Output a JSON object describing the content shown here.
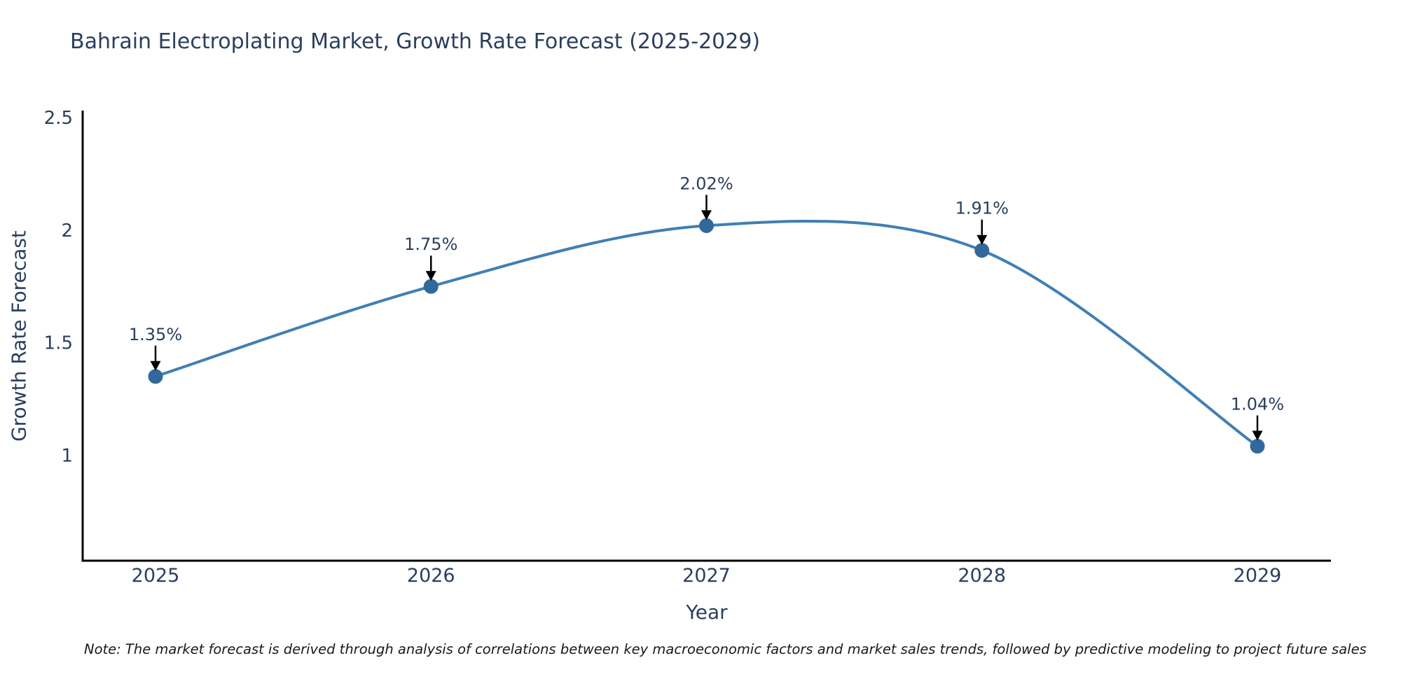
{
  "title": "Bahrain Electroplating Market, Growth Rate Forecast (2025-2029)",
  "note": "Note: The market forecast is derived through analysis of correlations between key macroeconomic factors and market sales trends, followed by predictive modeling to project future sales",
  "colors": {
    "line": "#3f7fb5",
    "marker": "#31699c",
    "text": "#2a3f5f",
    "axis": "#000000",
    "arrow": "#000000",
    "note_text": "#1a1a1a",
    "background": "#ffffff"
  },
  "chart_data": {
    "type": "line",
    "title": "Bahrain Electroplating Market, Growth Rate Forecast (2025-2029)",
    "xlabel": "Year",
    "ylabel": "Growth Rate Forecast",
    "x": [
      2025,
      2026,
      2027,
      2028,
      2029
    ],
    "categories": [
      "2025",
      "2026",
      "2027",
      "2028",
      "2029"
    ],
    "values": [
      1.35,
      1.75,
      2.02,
      1.91,
      1.04
    ],
    "point_labels": [
      "1.35%",
      "1.75%",
      "2.02%",
      "1.91%",
      "1.04%"
    ],
    "yticks": [
      1,
      1.5,
      2,
      2.5
    ],
    "ytick_labels": [
      "1",
      "1.5",
      "2",
      "2.5"
    ],
    "ylim": [
      0.53125,
      2.53125
    ],
    "line_shape": "spline",
    "markers": true,
    "grid": false,
    "legend": false,
    "annotations_arrow_direction": "down"
  }
}
